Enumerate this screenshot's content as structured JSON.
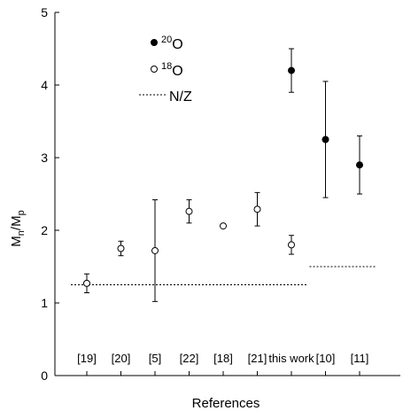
{
  "chart_data": {
    "type": "scatter",
    "xlabel": "References",
    "ylabel": {
      "main": "M",
      "sub_n": "n",
      "slash": "/M",
      "sub_p": "p"
    },
    "ylim": [
      0,
      5
    ],
    "yticks": [
      "0",
      "1",
      "2",
      "3",
      "4",
      "5"
    ],
    "categories": [
      "[19]",
      "[20]",
      "[5]",
      "[22]",
      "[18]",
      "[21]",
      "this work",
      "[10]",
      "[11]"
    ],
    "series": [
      {
        "name": "18O",
        "marker": "open-circle",
        "points": [
          {
            "category": "[19]",
            "y": 1.27,
            "err_low": 1.14,
            "err_high": 1.4
          },
          {
            "category": "[20]",
            "y": 1.75,
            "err_low": 1.65,
            "err_high": 1.85
          },
          {
            "category": "[5]",
            "y": 1.72,
            "err_low": 1.02,
            "err_high": 2.42
          },
          {
            "category": "[22]",
            "y": 2.26,
            "err_low": 2.1,
            "err_high": 2.42
          },
          {
            "category": "[18]",
            "y": 2.06,
            "err_low": null,
            "err_high": null
          },
          {
            "category": "[21]",
            "y": 2.29,
            "err_low": 2.06,
            "err_high": 2.52
          },
          {
            "category": "this work",
            "y": 1.8,
            "err_low": 1.67,
            "err_high": 1.93
          }
        ]
      },
      {
        "name": "20O",
        "marker": "filled-circle",
        "points": [
          {
            "category": "this work",
            "y": 4.2,
            "err_low": 3.9,
            "err_high": 4.5
          },
          {
            "category": "[10]",
            "y": 3.25,
            "err_low": 2.45,
            "err_high": 4.05
          },
          {
            "category": "[11]",
            "y": 2.9,
            "err_low": 2.5,
            "err_high": 3.3
          }
        ]
      }
    ],
    "reference_lines": [
      {
        "name": "N/Z",
        "style": "dotted",
        "y": 1.25,
        "from_category": "[19]",
        "to_category": "this work"
      },
      {
        "name": "N/Z",
        "style": "dotted",
        "y": 1.5,
        "from_category": "[10]",
        "to_category": "[11]"
      }
    ],
    "legend": {
      "placement": "top-left",
      "entries": [
        {
          "symbol": "filled-circle",
          "sup": "20",
          "label": "O"
        },
        {
          "symbol": "open-circle",
          "sup": "18",
          "label": "O"
        },
        {
          "symbol": "dotted-line",
          "sup": "",
          "label": "N/Z"
        }
      ]
    },
    "grid": false
  }
}
